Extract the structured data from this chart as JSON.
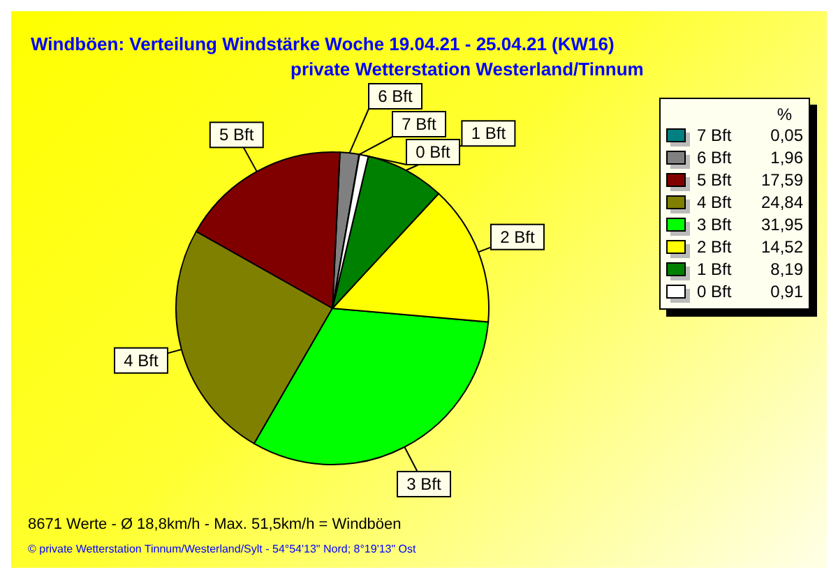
{
  "chart_data": {
    "type": "pie",
    "title": "Windböen: Verteilung Windstärke  Woche 19.04.21 - 25.04.21 (KW16)",
    "subtitle": "private Wetterstation Westerland/Tinnum",
    "legend_title": "%",
    "legend": "top right",
    "categories": [
      "7 Bft",
      "6 Bft",
      "5 Bft",
      "4 Bft",
      "3 Bft",
      "2 Bft",
      "1 Bft",
      "0 Bft"
    ],
    "values": [
      0.05,
      1.96,
      17.59,
      24.84,
      31.95,
      14.52,
      8.19,
      0.91
    ],
    "value_labels": [
      "0,05",
      "1,96",
      "17,59",
      "24,84",
      "31,95",
      "14,52",
      "8,19",
      "0,91"
    ],
    "colors": [
      "#008080",
      "#808080",
      "#800000",
      "#808000",
      "#00ff00",
      "#ffff00",
      "#008000",
      "#ffffff"
    ],
    "annotations": [
      "8671 Werte   -   Ø 18,8km/h  -  Max. 51,5km/h = Windböen",
      "© private Wetterstation Tinnum/Westerland/Sylt   -   54°54'13\" Nord; 8°19'13\" Ost"
    ]
  }
}
